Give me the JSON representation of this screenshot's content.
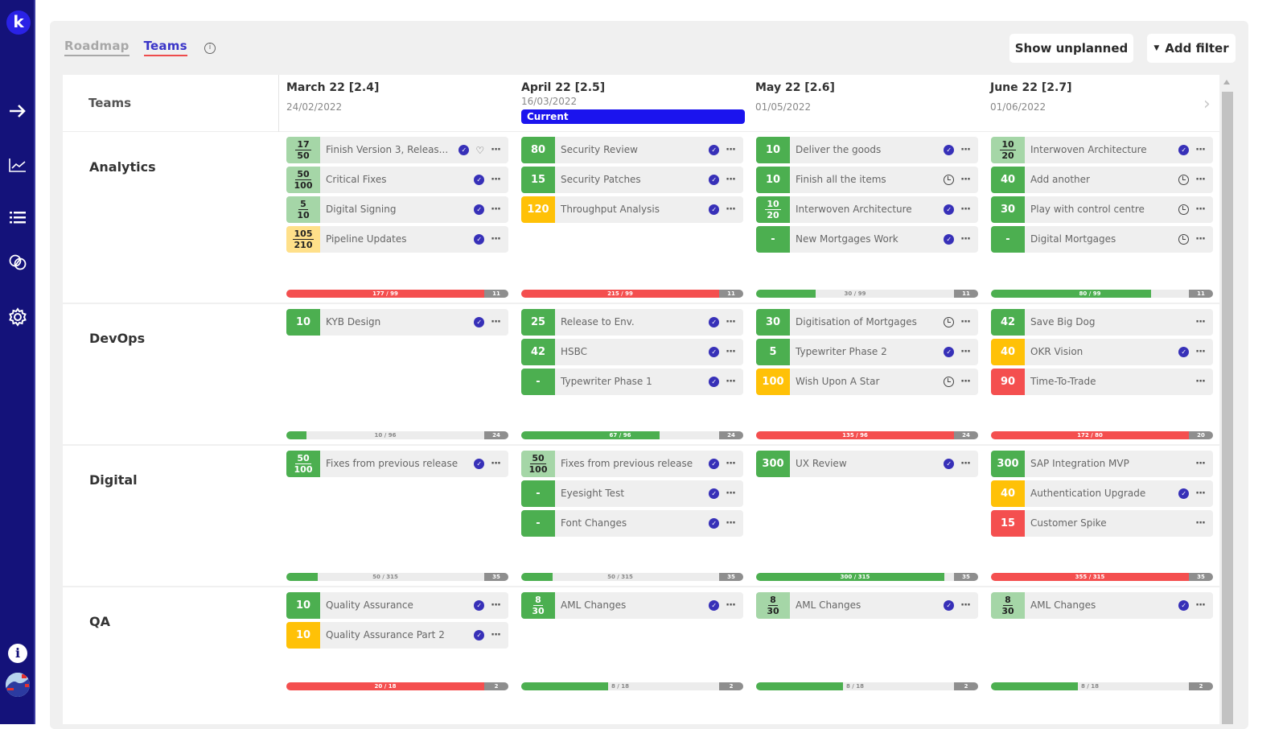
{
  "sidebar": {
    "logo": "k",
    "icons": [
      "arrow-right-icon",
      "chart-line-icon",
      "list-icon",
      "link-icon",
      "gear-icon"
    ],
    "info": "i"
  },
  "tabs": {
    "roadmap": "Roadmap",
    "teams": "Teams"
  },
  "toolbar": {
    "show_unplanned": "Show unplanned",
    "add_filter": "Add filter",
    "filter_icon": "▼"
  },
  "header": {
    "teams_label": "Teams",
    "sprints": [
      {
        "title": "March 22 [2.4]",
        "date": "24/02/2022",
        "current": false
      },
      {
        "title": "April 22 [2.5]",
        "date": "16/03/2022",
        "current": true,
        "badge": "Current"
      },
      {
        "title": "May 22 [2.6]",
        "date": "01/05/2022",
        "current": false
      },
      {
        "title": "June 22 [2.7]",
        "date": "01/06/2022",
        "current": false
      }
    ]
  },
  "colors": {
    "sidebar": "#14127a",
    "accent": "#1b14ee",
    "green": "#4caf50",
    "yellow": "#ffc107",
    "red": "#f44f4f",
    "tab_underline": "#ee4c4c"
  },
  "teams": [
    {
      "name": "Analytics",
      "columns": [
        {
          "cards": [
            {
              "points": "17/50",
              "color": "lightgreen",
              "title": "Finish Version 3, Releas...",
              "status": "check",
              "extra": "heart"
            },
            {
              "points": "50/100",
              "color": "lightgreen",
              "title": "Critical Fixes",
              "status": "check"
            },
            {
              "points": "5/10",
              "color": "lightgreen",
              "title": "Digital Signing",
              "status": "check"
            },
            {
              "points": "105/210",
              "color": "lightyellow",
              "title": "Pipeline Updates",
              "status": "check"
            }
          ],
          "capacity": {
            "label": "177 / 99",
            "end": "11",
            "fill_pct": 100,
            "color": "red"
          }
        },
        {
          "cards": [
            {
              "points": "80",
              "color": "green",
              "title": "Security Review",
              "status": "check"
            },
            {
              "points": "15",
              "color": "green",
              "title": "Security Patches",
              "status": "check"
            },
            {
              "points": "120",
              "color": "yellow",
              "title": "Throughput Analysis",
              "status": "check"
            }
          ],
          "capacity": {
            "label": "215 / 99",
            "end": "11",
            "fill_pct": 100,
            "color": "red"
          }
        },
        {
          "cards": [
            {
              "points": "10",
              "color": "green",
              "title": "Deliver the goods",
              "status": "check"
            },
            {
              "points": "10",
              "color": "green",
              "title": "Finish all the items",
              "status": "clock"
            },
            {
              "points": "10/20",
              "color": "green",
              "title": "Interwoven Architecture",
              "status": "check"
            },
            {
              "points": "-",
              "color": "green",
              "title": "New Mortgages Work",
              "status": "check"
            }
          ],
          "capacity": {
            "label": "30 / 99",
            "end": "11",
            "fill_pct": 30,
            "color": "green"
          }
        },
        {
          "cards": [
            {
              "points": "10/20",
              "color": "lightgreen",
              "title": "Interwoven Architecture",
              "status": "check"
            },
            {
              "points": "40",
              "color": "green",
              "title": "Add another",
              "status": "clock"
            },
            {
              "points": "30",
              "color": "green",
              "title": "Play with control centre",
              "status": "clock"
            },
            {
              "points": "-",
              "color": "green",
              "title": "Digital Mortgages",
              "status": "clock"
            }
          ],
          "capacity": {
            "label": "80 / 99",
            "end": "11",
            "fill_pct": 81,
            "color": "green"
          }
        }
      ]
    },
    {
      "name": "DevOps",
      "columns": [
        {
          "cards": [
            {
              "points": "10",
              "color": "green",
              "title": "KYB Design",
              "status": "check"
            }
          ],
          "capacity": {
            "label": "10 / 96",
            "end": "24",
            "fill_pct": 10,
            "color": "green"
          }
        },
        {
          "cards": [
            {
              "points": "25",
              "color": "green",
              "title": "Release to Env.",
              "status": "check"
            },
            {
              "points": "42",
              "color": "green",
              "title": "HSBC",
              "status": "check"
            },
            {
              "points": "-",
              "color": "green",
              "title": "Typewriter Phase 1",
              "status": "check"
            }
          ],
          "capacity": {
            "label": "67 / 96",
            "end": "24",
            "fill_pct": 70,
            "color": "green"
          }
        },
        {
          "cards": [
            {
              "points": "30",
              "color": "green",
              "title": "Digitisation of Mortgages",
              "status": "clock"
            },
            {
              "points": "5",
              "color": "green",
              "title": "Typewriter Phase 2",
              "status": "check"
            },
            {
              "points": "100",
              "color": "yellow",
              "title": "Wish Upon A Star",
              "status": "clock"
            }
          ],
          "capacity": {
            "label": "135 / 96",
            "end": "24",
            "fill_pct": 100,
            "color": "red"
          }
        },
        {
          "cards": [
            {
              "points": "42",
              "color": "green",
              "title": "Save Big Dog",
              "status": "none"
            },
            {
              "points": "40",
              "color": "yellow",
              "title": "OKR Vision",
              "status": "check"
            },
            {
              "points": "90",
              "color": "red",
              "title": "Time-To-Trade",
              "status": "none"
            }
          ],
          "capacity": {
            "label": "172 / 80",
            "end": "20",
            "fill_pct": 100,
            "color": "red"
          }
        }
      ]
    },
    {
      "name": "Digital",
      "columns": [
        {
          "cards": [
            {
              "points": "50/100",
              "color": "green",
              "title": "Fixes from previous release",
              "status": "check"
            }
          ],
          "capacity": {
            "label": "50 / 315",
            "end": "35",
            "fill_pct": 16,
            "color": "green"
          }
        },
        {
          "cards": [
            {
              "points": "50/100",
              "color": "lightgreen",
              "title": "Fixes from previous release",
              "status": "check"
            },
            {
              "points": "-",
              "color": "green",
              "title": "Eyesight Test",
              "status": "check"
            },
            {
              "points": "-",
              "color": "green",
              "title": "Font Changes",
              "status": "check"
            }
          ],
          "capacity": {
            "label": "50 / 315",
            "end": "35",
            "fill_pct": 16,
            "color": "green"
          }
        },
        {
          "cards": [
            {
              "points": "300",
              "color": "green",
              "title": "UX Review",
              "status": "check"
            }
          ],
          "capacity": {
            "label": "300 / 315",
            "end": "35",
            "fill_pct": 95,
            "color": "green"
          }
        },
        {
          "cards": [
            {
              "points": "300",
              "color": "green",
              "title": "SAP Integration MVP",
              "status": "none"
            },
            {
              "points": "40",
              "color": "yellow",
              "title": "Authentication Upgrade",
              "status": "check"
            },
            {
              "points": "15",
              "color": "red",
              "title": "Customer Spike",
              "status": "none"
            }
          ],
          "capacity": {
            "label": "355 / 315",
            "end": "35",
            "fill_pct": 100,
            "color": "red"
          }
        }
      ]
    },
    {
      "name": "QA",
      "columns": [
        {
          "cards": [
            {
              "points": "10",
              "color": "green",
              "title": "Quality Assurance",
              "status": "check"
            },
            {
              "points": "10",
              "color": "yellow",
              "title": "Quality Assurance Part 2",
              "status": "check"
            }
          ],
          "capacity": {
            "label": "20 / 18",
            "end": "2",
            "fill_pct": 100,
            "color": "red"
          }
        },
        {
          "cards": [
            {
              "points": "8/30",
              "color": "green",
              "title": "AML Changes",
              "status": "check"
            }
          ],
          "capacity": {
            "label": "8 / 18",
            "end": "2",
            "fill_pct": 44,
            "color": "green"
          }
        },
        {
          "cards": [
            {
              "points": "8/30",
              "color": "lightgreen",
              "title": "AML Changes",
              "status": "check"
            }
          ],
          "capacity": {
            "label": "8 / 18",
            "end": "2",
            "fill_pct": 44,
            "color": "green"
          }
        },
        {
          "cards": [
            {
              "points": "8/30",
              "color": "lightgreen",
              "title": "AML Changes",
              "status": "check"
            }
          ],
          "capacity": {
            "label": "8 / 18",
            "end": "2",
            "fill_pct": 44,
            "color": "green"
          }
        }
      ]
    }
  ]
}
